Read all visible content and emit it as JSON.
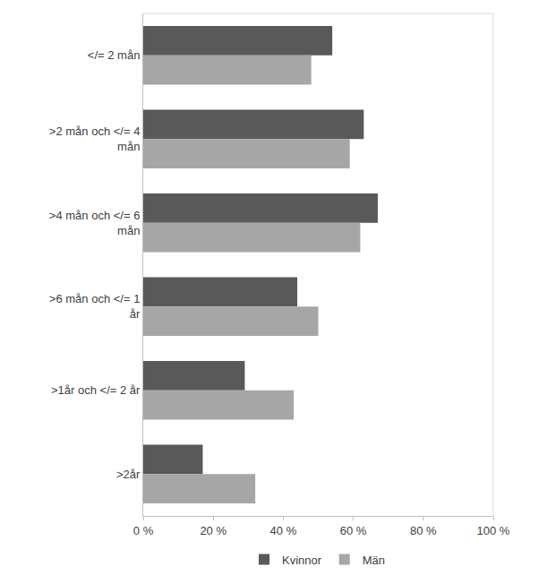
{
  "chart_data": {
    "type": "bar",
    "orientation": "horizontal",
    "categories": [
      "</= 2 mån",
      ">2 mån och </= 4 mån",
      ">4 mån och </= 6 mån",
      ">6 mån och </= 1 år",
      ">1år och </= 2 år",
      ">2år"
    ],
    "series": [
      {
        "name": "Kvinnor",
        "color": "#595959",
        "values": [
          54,
          63,
          67,
          44,
          29,
          17
        ]
      },
      {
        "name": "Män",
        "color": "#a6a6a6",
        "values": [
          48,
          59,
          62,
          50,
          43,
          32
        ]
      }
    ],
    "xlim": [
      0,
      100
    ],
    "xticks": [
      {
        "value": 0,
        "label": "0 %"
      },
      {
        "value": 20,
        "label": "20 %"
      },
      {
        "value": 40,
        "label": "40 %"
      },
      {
        "value": 60,
        "label": "60 %"
      },
      {
        "value": 80,
        "label": "80 %"
      },
      {
        "value": 100,
        "label": "100 %"
      }
    ],
    "grid": false,
    "legend": "bottom"
  }
}
